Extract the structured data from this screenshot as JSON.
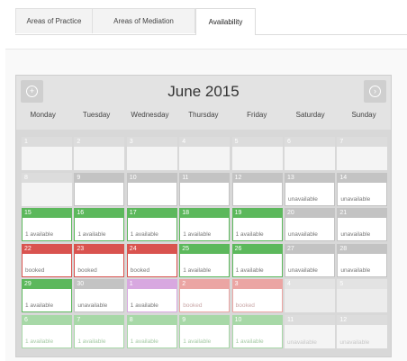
{
  "tabs": [
    "Areas of Practice",
    "Areas of Mediation",
    "Availability"
  ],
  "calendar": {
    "month": "June 2015",
    "weekdays": [
      "Monday",
      "Tuesday",
      "Wednesday",
      "Thursday",
      "Friday",
      "Saturday",
      "Sunday"
    ],
    "prev_icon": "circle-plus-icon",
    "next_icon": "circle-chevron-right-icon",
    "weeks": [
      [
        {
          "day": "1",
          "state": "empty",
          "status": ""
        },
        {
          "day": "2",
          "state": "empty",
          "status": ""
        },
        {
          "day": "3",
          "state": "empty",
          "status": ""
        },
        {
          "day": "4",
          "state": "empty",
          "status": ""
        },
        {
          "day": "5",
          "state": "empty",
          "status": ""
        },
        {
          "day": "6",
          "state": "empty",
          "status": ""
        },
        {
          "day": "7",
          "state": "empty",
          "status": ""
        }
      ],
      [
        {
          "day": "8",
          "state": "empty",
          "status": ""
        },
        {
          "day": "9",
          "state": "gray",
          "status": ""
        },
        {
          "day": "10",
          "state": "gray",
          "status": ""
        },
        {
          "day": "11",
          "state": "gray",
          "status": ""
        },
        {
          "day": "12",
          "state": "gray",
          "status": ""
        },
        {
          "day": "13",
          "state": "gray",
          "status": "unavailable"
        },
        {
          "day": "14",
          "state": "gray",
          "status": "unavailable"
        }
      ],
      [
        {
          "day": "15",
          "state": "green",
          "status": "1 available"
        },
        {
          "day": "16",
          "state": "green",
          "status": "1 available"
        },
        {
          "day": "17",
          "state": "green",
          "status": "1 available"
        },
        {
          "day": "18",
          "state": "green",
          "status": "1 available"
        },
        {
          "day": "19",
          "state": "green",
          "status": "1 available"
        },
        {
          "day": "20",
          "state": "gray",
          "status": "unavailable"
        },
        {
          "day": "21",
          "state": "gray",
          "status": "unavailable"
        }
      ],
      [
        {
          "day": "22",
          "state": "red",
          "status": "booked"
        },
        {
          "day": "23",
          "state": "red",
          "status": "booked"
        },
        {
          "day": "24",
          "state": "red",
          "status": "booked"
        },
        {
          "day": "25",
          "state": "green",
          "status": "1 available"
        },
        {
          "day": "26",
          "state": "green",
          "status": "1 available"
        },
        {
          "day": "27",
          "state": "gray",
          "status": "unavailable"
        },
        {
          "day": "28",
          "state": "gray",
          "status": "unavailable"
        }
      ],
      [
        {
          "day": "29",
          "state": "green",
          "status": "1 available"
        },
        {
          "day": "30",
          "state": "gray",
          "status": "unavailable"
        },
        {
          "day": "1",
          "state": "purple",
          "status": "1 available"
        },
        {
          "day": "2",
          "state": "pink",
          "status": "booked"
        },
        {
          "day": "3",
          "state": "pink",
          "status": "booked"
        },
        {
          "day": "4",
          "state": "ltgray",
          "status": ""
        },
        {
          "day": "5",
          "state": "ltgray",
          "status": ""
        }
      ],
      [
        {
          "day": "6",
          "state": "ltgreen",
          "status": "1 available"
        },
        {
          "day": "7",
          "state": "ltgreen",
          "status": "1 available"
        },
        {
          "day": "8",
          "state": "ltgreen",
          "status": "1 available"
        },
        {
          "day": "9",
          "state": "ltgreen",
          "status": "1 available"
        },
        {
          "day": "10",
          "state": "ltgreen",
          "status": "1 available"
        },
        {
          "day": "11",
          "state": "ltgrayf",
          "status": "unavailable"
        },
        {
          "day": "12",
          "state": "ltgrayf",
          "status": "unavailable"
        }
      ]
    ]
  }
}
